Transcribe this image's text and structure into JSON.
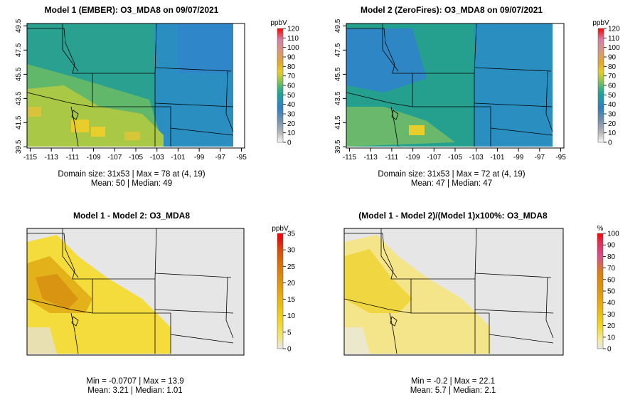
{
  "panels": [
    {
      "id": "p1",
      "title": "Model 1 (EMBER): O3_MDA8 on 09/07/2021",
      "legend_unit": "ppbV",
      "legend_ticks": [
        "0",
        "10",
        "20",
        "30",
        "40",
        "50",
        "60",
        "70",
        "80",
        "90",
        "100",
        "110",
        "120"
      ],
      "stats_line1": "Domain size: 31x53 | Max = 78 at (4, 19)",
      "stats_line2": "Mean: 50 |  Median: 49",
      "x_ticks": [
        "-115",
        "-113",
        "-111",
        "-109",
        "-107",
        "-105",
        "-103",
        "-101",
        "-99",
        "-97",
        "-95"
      ],
      "y_ticks": [
        "39.5",
        "41.5",
        "43.5",
        "45.5",
        "47.5",
        "49.5"
      ]
    },
    {
      "id": "p2",
      "title": "Model 2 (ZeroFires): O3_MDA8 on 09/07/2021",
      "legend_unit": "ppbV",
      "legend_ticks": [
        "0",
        "10",
        "20",
        "30",
        "40",
        "50",
        "60",
        "70",
        "80",
        "90",
        "100",
        "110",
        "120"
      ],
      "stats_line1": "Domain size: 31x53 | Max = 72 at (4, 19)",
      "stats_line2": "Mean: 47 |  Median: 47",
      "x_ticks": [
        "-115",
        "-113",
        "-111",
        "-109",
        "-107",
        "-105",
        "-103",
        "-101",
        "-99",
        "-97",
        "-95"
      ],
      "y_ticks": [
        "39.5",
        "41.5",
        "43.5",
        "45.5",
        "47.5",
        "49.5"
      ]
    },
    {
      "id": "p3",
      "title": "Model 1 - Model 2: O3_MDA8",
      "legend_unit": "ppbV",
      "legend_ticks": [
        "0",
        "5",
        "10",
        "15",
        "20",
        "25",
        "30",
        "35"
      ],
      "stats_line1": "Min = -0.0707 | Max = 13.9",
      "stats_line2": "Mean: 3.21 |  Median: 1.01"
    },
    {
      "id": "p4",
      "title": "(Model 1 - Model 2)/(Model 1)x100%: O3_MDA8",
      "legend_unit": "%",
      "legend_ticks": [
        "0",
        "10",
        "20",
        "30",
        "40",
        "50",
        "60",
        "70",
        "80",
        "90",
        "100"
      ],
      "stats_line1": "Min = -0.2 | Max = 22.1",
      "stats_line2": "Mean: 5.7 |  Median: 2.1"
    }
  ],
  "chart_data": [
    {
      "type": "heatmap",
      "title": "Model 1 (EMBER): O3_MDA8 on 09/07/2021",
      "variable": "O3_MDA8",
      "units": "ppbV",
      "grid": [
        31,
        53
      ],
      "xlim": [
        -115.3,
        -94.7
      ],
      "ylim": [
        39.4,
        49.7
      ],
      "color_range": [
        0,
        120
      ],
      "max": 78,
      "max_location": [
        4,
        19
      ],
      "mean": 50,
      "median": 49
    },
    {
      "type": "heatmap",
      "title": "Model 2 (ZeroFires): O3_MDA8 on 09/07/2021",
      "variable": "O3_MDA8",
      "units": "ppbV",
      "grid": [
        31,
        53
      ],
      "xlim": [
        -115.3,
        -94.7
      ],
      "ylim": [
        39.4,
        49.7
      ],
      "color_range": [
        0,
        120
      ],
      "max": 72,
      "max_location": [
        4,
        19
      ],
      "mean": 47,
      "median": 47
    },
    {
      "type": "heatmap",
      "title": "Model 1 - Model 2: O3_MDA8",
      "units": "ppbV",
      "color_range": [
        0,
        35
      ],
      "min": -0.0707,
      "max": 13.9,
      "mean": 3.21,
      "median": 1.01
    },
    {
      "type": "heatmap",
      "title": "(Model 1 - Model 2)/(Model 1)x100%: O3_MDA8",
      "units": "%",
      "color_range": [
        0,
        100
      ],
      "min": -0.2,
      "max": 22.1,
      "mean": 5.7,
      "median": 2.1
    }
  ],
  "colors": {
    "frame": "#000000",
    "no_change": "#e6e6e6",
    "ozone_scale": [
      "#f5f5f5",
      "#b8b8b8",
      "#6e8fae",
      "#2f7fc0",
      "#2a92b4",
      "#1aa39a",
      "#43b27f",
      "#9bc64a",
      "#e9cd2a",
      "#e0a72e",
      "#d9977a",
      "#d67fa8",
      "#ff0000"
    ],
    "diff_scale": [
      "#e8e8e8",
      "#f1e47c",
      "#f0d61f",
      "#e9ba12",
      "#e19a10",
      "#d97a0c",
      "#d54f08",
      "#e81010",
      "#ff0000"
    ]
  }
}
